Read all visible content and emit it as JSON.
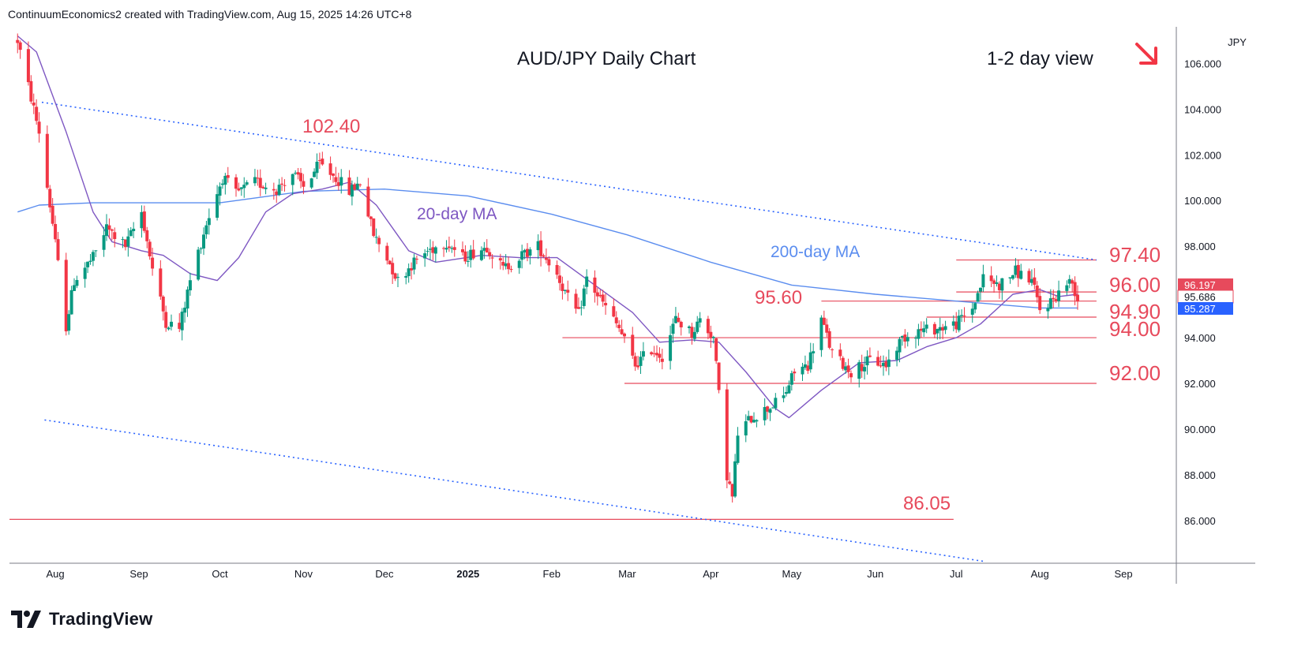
{
  "header": {
    "text": "ContinuumEconomics2 created with TradingView.com, Aug 15, 2025 14:26 UTC+8"
  },
  "branding": {
    "logo_text": "TradingView"
  },
  "chart_data": {
    "type": "candlestick",
    "title": "AUD/JPY Daily Chart",
    "subtitle": "1-2 day view",
    "currency": "JPY",
    "x_ticks": [
      "Aug",
      "Sep",
      "Oct",
      "Nov",
      "Dec",
      "2025",
      "Feb",
      "Mar",
      "Apr",
      "May",
      "Jun",
      "Jul",
      "Aug",
      "Sep"
    ],
    "y_ticks": [
      "106.000",
      "104.000",
      "102.000",
      "100.000",
      "98.000",
      "96.000",
      "94.000",
      "92.000",
      "90.000",
      "88.000",
      "86.000"
    ],
    "y_range": [
      84.2,
      107.6
    ],
    "price_labels": [
      {
        "text": "96.197",
        "value": 96.197,
        "color": "#e74a5c"
      },
      {
        "text": "95.686",
        "value": 95.686,
        "color": "#e74a5c"
      },
      {
        "text": "95.287",
        "value": 95.287,
        "color": "#2962ff"
      }
    ],
    "ma_labels": {
      "ma20": "20-day MA",
      "ma200": "200-day MA"
    },
    "annotations": [
      {
        "text": "102.40",
        "value": 102.4
      },
      {
        "text": "95.60",
        "value": 95.6
      },
      {
        "text": "86.05",
        "value": 86.05
      },
      {
        "text": "97.40",
        "value": 97.4
      },
      {
        "text": "96.00",
        "value": 96.0
      },
      {
        "text": "94.90",
        "value": 94.9
      },
      {
        "text": "94.00",
        "value": 94.0
      },
      {
        "text": "92.00",
        "value": 92.0
      }
    ],
    "direction": "down",
    "colors": {
      "up": "#089981",
      "down": "#f23645",
      "ma20": "#7e57c2",
      "ma200": "#5b8def",
      "trend": "#2962ff",
      "level": "#e74a5c"
    },
    "anchors": [
      [
        "2024-07-18",
        107.0
      ],
      [
        "2024-07-22",
        105.0
      ],
      [
        "2024-07-26",
        103.0
      ],
      [
        "2024-07-31",
        99.0
      ],
      [
        "2024-08-05",
        94.5
      ],
      [
        "2024-08-08",
        96.5
      ],
      [
        "2024-08-15",
        97.5
      ],
      [
        "2024-08-20",
        98.8
      ],
      [
        "2024-08-27",
        98.0
      ],
      [
        "2024-09-02",
        99.5
      ],
      [
        "2024-09-06",
        97.0
      ],
      [
        "2024-09-11",
        94.7
      ],
      [
        "2024-09-16",
        94.4
      ],
      [
        "2024-09-20",
        96.5
      ],
      [
        "2024-09-26",
        99.0
      ],
      [
        "2024-10-02",
        101.0
      ],
      [
        "2024-10-07",
        100.3
      ],
      [
        "2024-10-14",
        100.8
      ],
      [
        "2024-10-22",
        100.5
      ],
      [
        "2024-10-28",
        101.2
      ],
      [
        "2024-11-01",
        100.6
      ],
      [
        "2024-11-07",
        101.6
      ],
      [
        "2024-11-13",
        101.0
      ],
      [
        "2024-11-18",
        100.4
      ],
      [
        "2024-11-22",
        100.8
      ],
      [
        "2024-11-27",
        98.5
      ],
      [
        "2024-12-02",
        97.5
      ],
      [
        "2024-12-06",
        96.5
      ],
      [
        "2024-12-11",
        97.2
      ],
      [
        "2024-12-17",
        97.8
      ],
      [
        "2024-12-24",
        98.2
      ],
      [
        "2024-12-30",
        97.5
      ],
      [
        "2025-01-08",
        98.0
      ],
      [
        "2025-01-14",
        97.0
      ],
      [
        "2025-01-21",
        97.6
      ],
      [
        "2025-01-27",
        98.0
      ],
      [
        "2025-02-03",
        96.8
      ],
      [
        "2025-02-07",
        95.7
      ],
      [
        "2025-02-11",
        95.0
      ],
      [
        "2025-02-14",
        96.6
      ],
      [
        "2025-02-20",
        95.5
      ],
      [
        "2025-02-26",
        94.4
      ],
      [
        "2025-03-04",
        92.8
      ],
      [
        "2025-03-10",
        93.5
      ],
      [
        "2025-03-14",
        93.2
      ],
      [
        "2025-03-19",
        94.8
      ],
      [
        "2025-03-25",
        94.2
      ],
      [
        "2025-03-28",
        94.8
      ],
      [
        "2025-04-02",
        94.0
      ],
      [
        "2025-04-04",
        91.5
      ],
      [
        "2025-04-07",
        88.0
      ],
      [
        "2025-04-09",
        87.0
      ],
      [
        "2025-04-11",
        89.8
      ],
      [
        "2025-04-16",
        90.5
      ],
      [
        "2025-04-22",
        90.9
      ],
      [
        "2025-04-28",
        91.4
      ],
      [
        "2025-05-02",
        92.5
      ],
      [
        "2025-05-07",
        92.8
      ],
      [
        "2025-05-12",
        94.8
      ],
      [
        "2025-05-16",
        93.3
      ],
      [
        "2025-05-23",
        92.5
      ],
      [
        "2025-05-30",
        93.0
      ],
      [
        "2025-06-05",
        92.8
      ],
      [
        "2025-06-11",
        94.0
      ],
      [
        "2025-06-17",
        94.3
      ],
      [
        "2025-06-24",
        94.4
      ],
      [
        "2025-07-01",
        94.6
      ],
      [
        "2025-07-07",
        95.3
      ],
      [
        "2025-07-11",
        96.6
      ],
      [
        "2025-07-17",
        96.3
      ],
      [
        "2025-07-23",
        96.9
      ],
      [
        "2025-07-29",
        96.5
      ],
      [
        "2025-08-01",
        95.2
      ],
      [
        "2025-08-06",
        95.7
      ],
      [
        "2025-08-11",
        96.4
      ],
      [
        "2025-08-13",
        96.4
      ],
      [
        "2025-08-15",
        95.7
      ]
    ],
    "ma20": [
      [
        "2024-07-18",
        107.2
      ],
      [
        "2024-07-25",
        106.5
      ],
      [
        "2024-08-05",
        103.0
      ],
      [
        "2024-08-15",
        99.5
      ],
      [
        "2024-08-22",
        98.2
      ],
      [
        "2024-09-02",
        97.8
      ],
      [
        "2024-09-10",
        97.6
      ],
      [
        "2024-09-20",
        96.8
      ],
      [
        "2024-09-30",
        96.5
      ],
      [
        "2024-10-08",
        97.5
      ],
      [
        "2024-10-18",
        99.5
      ],
      [
        "2024-10-28",
        100.3
      ],
      [
        "2024-11-08",
        100.5
      ],
      [
        "2024-11-18",
        100.8
      ],
      [
        "2024-11-28",
        99.8
      ],
      [
        "2024-12-10",
        97.8
      ],
      [
        "2024-12-20",
        97.3
      ],
      [
        "2025-01-06",
        97.6
      ],
      [
        "2025-01-20",
        97.5
      ],
      [
        "2025-02-03",
        97.5
      ],
      [
        "2025-02-17",
        96.3
      ],
      [
        "2025-03-03",
        95.1
      ],
      [
        "2025-03-13",
        93.8
      ],
      [
        "2025-03-25",
        93.9
      ],
      [
        "2025-04-04",
        93.8
      ],
      [
        "2025-04-14",
        92.5
      ],
      [
        "2025-04-25",
        90.9
      ],
      [
        "2025-04-30",
        90.5
      ],
      [
        "2025-05-12",
        91.7
      ],
      [
        "2025-05-26",
        92.9
      ],
      [
        "2025-06-09",
        93.0
      ],
      [
        "2025-06-20",
        93.6
      ],
      [
        "2025-07-01",
        94.0
      ],
      [
        "2025-07-10",
        94.6
      ],
      [
        "2025-07-22",
        95.9
      ],
      [
        "2025-08-01",
        96.1
      ],
      [
        "2025-08-08",
        95.8
      ],
      [
        "2025-08-15",
        95.9
      ]
    ],
    "ma200": [
      [
        "2024-07-18",
        99.5
      ],
      [
        "2024-07-26",
        99.8
      ],
      [
        "2024-08-15",
        99.9
      ],
      [
        "2024-09-05",
        99.9
      ],
      [
        "2024-10-01",
        99.9
      ],
      [
        "2024-11-01",
        100.4
      ],
      [
        "2024-12-01",
        100.5
      ],
      [
        "2025-01-01",
        100.2
      ],
      [
        "2025-02-01",
        99.4
      ],
      [
        "2025-03-01",
        98.5
      ],
      [
        "2025-04-01",
        97.3
      ],
      [
        "2025-05-01",
        96.3
      ],
      [
        "2025-06-01",
        95.9
      ],
      [
        "2025-07-01",
        95.6
      ],
      [
        "2025-08-01",
        95.3
      ],
      [
        "2025-08-15",
        95.3
      ]
    ],
    "trendlines": [
      {
        "points": [
          [
            "2024-07-27",
            104.3
          ],
          [
            "2025-08-22",
            97.4
          ]
        ]
      },
      {
        "points": [
          [
            "2024-07-28",
            90.4
          ],
          [
            "2025-07-12",
            84.2
          ]
        ]
      }
    ],
    "levels": [
      {
        "value": 97.4,
        "from": "2025-07-01",
        "to": "2025-08-22"
      },
      {
        "value": 96.0,
        "from": "2025-07-01",
        "to": "2025-08-22"
      },
      {
        "value": 95.6,
        "from": "2025-05-12",
        "to": "2025-08-22"
      },
      {
        "value": 94.9,
        "from": "2025-06-20",
        "to": "2025-08-22"
      },
      {
        "value": 94.0,
        "from": "2025-02-05",
        "to": "2025-08-22"
      },
      {
        "value": 92.0,
        "from": "2025-02-28",
        "to": "2025-08-22"
      },
      {
        "value": 86.05,
        "from": "2024-07-15",
        "to": "2025-06-30"
      }
    ]
  }
}
